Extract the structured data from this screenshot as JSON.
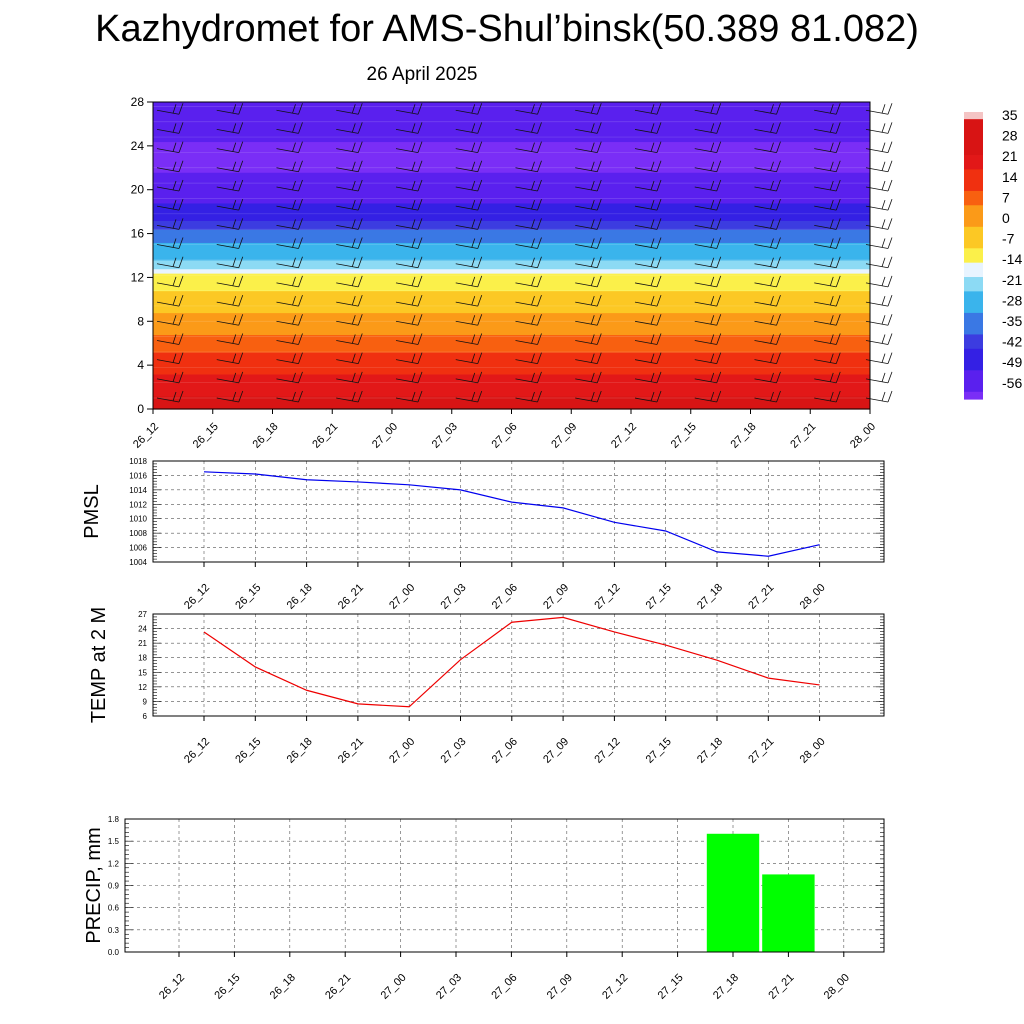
{
  "title": "Kazhydromet for AMS-Shul’binsk(50.389 81.082)",
  "subtitle": "26 April 2025",
  "chart_data": [
    {
      "type": "heatmap",
      "description_id": "cross-section",
      "x": [
        "26_12",
        "26_15",
        "26_18",
        "26_21",
        "27_00",
        "27_03",
        "27_06",
        "27_09",
        "27_12",
        "27_15",
        "27_18",
        "27_21",
        "28_00"
      ],
      "yticks": [
        0,
        4,
        8,
        12,
        16,
        20,
        24,
        28
      ],
      "ylim": [
        0,
        28
      ],
      "colorbar_labels": [
        "35",
        "28",
        "21",
        "14",
        "7",
        "0",
        "-7",
        "-14",
        "-21",
        "-28",
        "-35",
        "-42",
        "-49",
        "-56"
      ],
      "colorbar_colors": [
        "#f4c4c4",
        "#ee2020",
        "#e21818",
        "#f03010",
        "#f85a10",
        "#fb8a14",
        "#fcb820",
        "#fbe43a",
        "#e0f0ff",
        "#4ac8ee",
        "#3a88e8",
        "#3a48e0",
        "#5028ee",
        "#7830f6"
      ],
      "profile": [
        {
          "h": 0,
          "t": 24
        },
        {
          "h": 2,
          "t": 21
        },
        {
          "h": 4,
          "t": 14
        },
        {
          "h": 6,
          "t": 7
        },
        {
          "h": 8,
          "t": 0
        },
        {
          "h": 10,
          "t": -7
        },
        {
          "h": 12,
          "t": -14
        },
        {
          "h": 13,
          "t": -21
        },
        {
          "h": 14.5,
          "t": -28
        },
        {
          "h": 16,
          "t": -35
        },
        {
          "h": 17.5,
          "t": -49
        },
        {
          "h": 20,
          "t": -56
        },
        {
          "h": 23,
          "t": -63
        },
        {
          "h": 25,
          "t": -58
        },
        {
          "h": 28,
          "t": -56
        }
      ]
    },
    {
      "type": "line",
      "ylabel": "PMSL",
      "x": [
        "26_12",
        "26_15",
        "26_18",
        "26_21",
        "27_00",
        "27_03",
        "27_06",
        "27_09",
        "27_12",
        "27_15",
        "27_18",
        "27_21",
        "28_00"
      ],
      "values": [
        1016.5,
        1016.2,
        1015.4,
        1015.1,
        1014.7,
        1014.0,
        1012.3,
        1011.5,
        1009.5,
        1008.3,
        1005.4,
        1004.8,
        1006.4
      ],
      "yticks": [
        "1018",
        "1016",
        "1014",
        "1012",
        "1010",
        "1008",
        "1006",
        "1004"
      ],
      "ylim": [
        1004,
        1018
      ],
      "color": "#0000ee"
    },
    {
      "type": "line",
      "ylabel": "TEMP at 2 M",
      "x": [
        "26_12",
        "26_15",
        "26_18",
        "26_21",
        "27_00",
        "27_03",
        "27_06",
        "27_09",
        "27_12",
        "27_15",
        "27_18",
        "27_21",
        "28_00"
      ],
      "values": [
        23.3,
        16.1,
        11.3,
        8.5,
        7.9,
        17.6,
        25.3,
        26.3,
        23.3,
        20.6,
        17.5,
        13.8,
        12.4
      ],
      "yticks": [
        "27",
        "24",
        "21",
        "18",
        "15",
        "12",
        "9",
        "6"
      ],
      "ylim": [
        6,
        27
      ],
      "color": "#ee0000"
    },
    {
      "type": "bar",
      "ylabel": "PRECIP, mm",
      "x": [
        "26_12",
        "26_15",
        "26_18",
        "26_21",
        "27_00",
        "27_03",
        "27_06",
        "27_09",
        "27_12",
        "27_15",
        "27_18",
        "27_21",
        "28_00"
      ],
      "values": [
        0,
        0,
        0,
        0,
        0,
        0,
        0,
        0,
        0,
        0,
        1.6,
        1.05,
        0
      ],
      "yticks": [
        "1.8",
        "1.5",
        "1.2",
        "0.9",
        "0.6",
        "0.3",
        "0.0"
      ],
      "ylim": [
        0,
        1.8
      ],
      "color": "#00ff00"
    }
  ]
}
